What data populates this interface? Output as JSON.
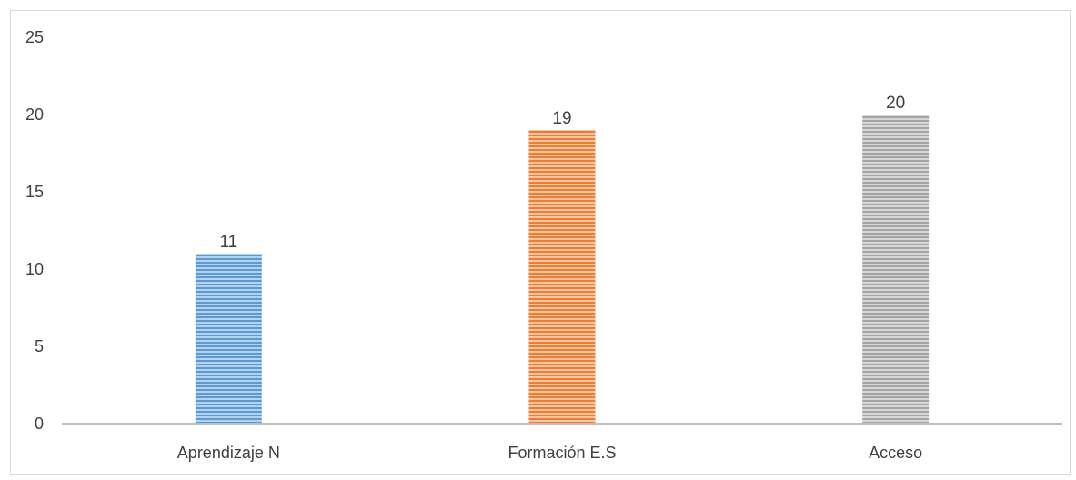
{
  "chart_data": {
    "type": "bar",
    "categories": [
      "Aprendizaje N",
      "Formación E.S",
      "Acceso"
    ],
    "values": [
      11,
      19,
      20
    ],
    "data_labels": [
      "11",
      "19",
      "20"
    ],
    "ylim": [
      0,
      25
    ],
    "yticks": [
      0,
      5,
      10,
      15,
      20,
      25
    ],
    "ytick_labels": [
      "0",
      "5",
      "10",
      "15",
      "20",
      "25"
    ],
    "grid": false,
    "legend": "none",
    "series_colors": [
      "#5b9bd5",
      "#ed7d31",
      "#a5a5a5"
    ],
    "bar_pattern": "horizontal-stripes"
  }
}
